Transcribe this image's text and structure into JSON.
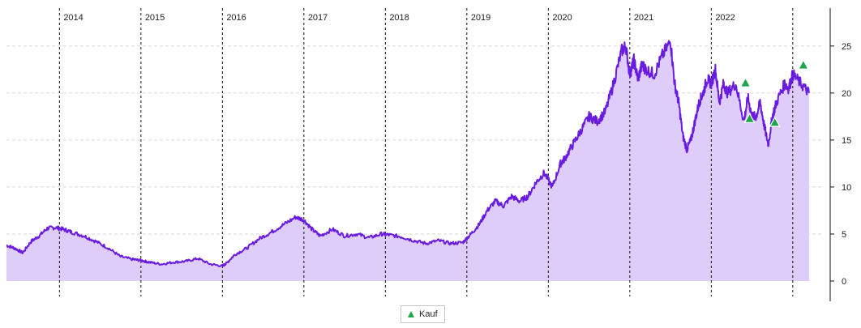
{
  "chart_data": {
    "type": "area",
    "title": "",
    "xlabel": "",
    "ylabel": "",
    "ylim": [
      0,
      28
    ],
    "yticks": [
      0,
      5,
      10,
      15,
      20,
      25
    ],
    "xlim": [
      2013.35,
      2023.35
    ],
    "year_ticks": [
      {
        "x": 2014,
        "label": "2014"
      },
      {
        "x": 2015,
        "label": "2015"
      },
      {
        "x": 2016,
        "label": "2016"
      },
      {
        "x": 2017,
        "label": "2017"
      },
      {
        "x": 2018,
        "label": "2018"
      },
      {
        "x": 2019,
        "label": "2019"
      },
      {
        "x": 2020,
        "label": "2020"
      },
      {
        "x": 2021,
        "label": "2021"
      },
      {
        "x": 2022,
        "label": "2022"
      },
      {
        "x": 2023,
        "label": ""
      }
    ],
    "grid": "horizontal dashed",
    "colors": {
      "line": "#6a1be0",
      "fill": "#ddcdf8",
      "marker": "#1fa64a"
    },
    "series": [
      {
        "x": [
          2013.35,
          2013.45,
          2013.55,
          2013.65,
          2013.75,
          2013.85,
          2013.95,
          2014.05,
          2014.15,
          2014.3,
          2014.45,
          2014.6,
          2014.75,
          2014.9,
          2015.0,
          2015.1,
          2015.25,
          2015.4,
          2015.55,
          2015.7,
          2015.85,
          2016.0,
          2016.05,
          2016.15,
          2016.3,
          2016.45,
          2016.6,
          2016.75,
          2016.9,
          2017.0,
          2017.1,
          2017.2,
          2017.35,
          2017.5,
          2017.65,
          2017.8,
          2017.95,
          2018.05,
          2018.2,
          2018.35,
          2018.5,
          2018.65,
          2018.8,
          2018.95,
          2019.05,
          2019.15,
          2019.25,
          2019.35,
          2019.45,
          2019.55,
          2019.65,
          2019.75,
          2019.85,
          2019.95,
          2020.05,
          2020.15,
          2020.2,
          2020.3,
          2020.4,
          2020.5,
          2020.6,
          2020.7,
          2020.8,
          2020.9,
          2020.95,
          2021.0,
          2021.05,
          2021.1,
          2021.15,
          2021.2,
          2021.3,
          2021.4,
          2021.5,
          2021.55,
          2021.6,
          2021.65,
          2021.7,
          2021.75,
          2021.8,
          2021.85,
          2021.9,
          2021.95,
          2022.0,
          2022.05,
          2022.1,
          2022.15,
          2022.2,
          2022.3,
          2022.4,
          2022.45,
          2022.5,
          2022.55,
          2022.6,
          2022.65,
          2022.7,
          2022.75,
          2022.8,
          2022.9,
          2022.95,
          2023.0,
          2023.1,
          2023.2
        ],
        "y": [
          3.8,
          3.5,
          3.0,
          4.2,
          4.8,
          5.6,
          5.7,
          5.5,
          5.2,
          4.8,
          4.2,
          3.5,
          2.6,
          2.3,
          2.2,
          2.0,
          1.8,
          2.0,
          2.1,
          2.4,
          1.8,
          1.6,
          1.9,
          2.8,
          3.5,
          4.5,
          5.2,
          6.0,
          6.8,
          6.5,
          5.5,
          4.8,
          5.5,
          4.8,
          5.0,
          4.6,
          5.0,
          4.9,
          4.7,
          4.3,
          4.0,
          4.3,
          4.0,
          4.1,
          5.0,
          6.0,
          7.5,
          8.5,
          8.0,
          9.0,
          8.5,
          9.0,
          10.5,
          11.5,
          10.0,
          12.5,
          13.0,
          14.5,
          16.0,
          17.5,
          17.0,
          18.0,
          21.0,
          24.5,
          25.0,
          22.0,
          23.5,
          21.5,
          23.0,
          22.5,
          22.0,
          24.0,
          25.5,
          21.0,
          19.0,
          15.5,
          14.0,
          15.0,
          17.0,
          19.0,
          20.0,
          21.5,
          21.0,
          22.5,
          19.0,
          21.0,
          20.0,
          21.0,
          17.0,
          19.5,
          17.5,
          17.5,
          19.0,
          16.5,
          14.5,
          17.5,
          19.0,
          21.0,
          20.5,
          22.0,
          21.0,
          20.0
        ]
      }
    ],
    "markers": [
      {
        "name": "Kauf",
        "x": 2022.42,
        "y": 21.0
      },
      {
        "name": "Kauf",
        "x": 2022.47,
        "y": 17.2
      },
      {
        "name": "Kauf",
        "x": 2022.78,
        "y": 16.8
      },
      {
        "name": "Kauf",
        "x": 2023.13,
        "y": 22.9
      }
    ],
    "legend": {
      "position": "bottom-center",
      "entries": [
        {
          "label": "Kauf",
          "marker": "triangle"
        }
      ]
    }
  }
}
